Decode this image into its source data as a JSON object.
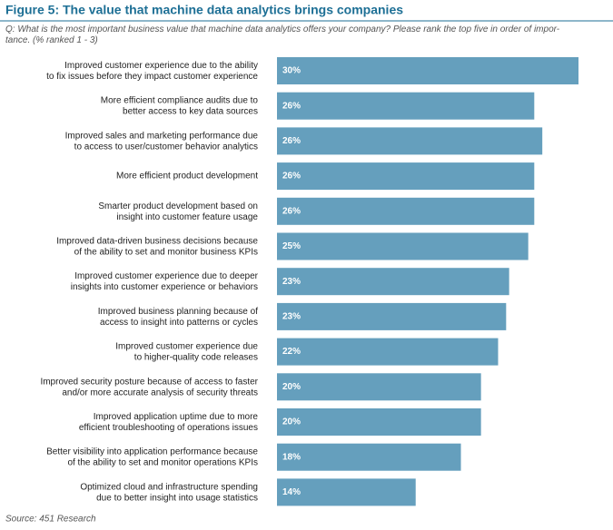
{
  "chart_data": {
    "type": "hbar",
    "title": "Figure 5: The value that machine data analytics brings companies",
    "subtitle": "Q: What is the most important business value that machine data analytics offers your company? Please rank the top five in order of impor-\ntance. (% ranked 1 - 3)",
    "source": "Source: 451 Research",
    "color": "#659fbd",
    "categories": [
      "Improved customer experience due to the ability\nto fix issues before they impact customer experience",
      "More efficient compliance audits due to\nbetter access to key data sources",
      "Improved sales and marketing performance due\nto access to user/customer behavior analytics",
      "More efficient product development",
      "Smarter product development based on\ninsight into customer feature usage",
      "Improved data-driven business decisions because\nof the ability to set and monitor business KPIs",
      "Improved customer experience due to deeper\ninsights into customer experience or behaviors",
      "Improved business planning because of\naccess to insight into patterns or cycles",
      "Improved customer experience due\nto higher-quality code releases",
      "Improved security posture because of access to faster\nand/or more accurate analysis of security threats",
      "Improved application uptime due to more\nefficient troubleshooting of operations issues",
      "Better visibility into application performance because\nof the ability to set and monitor operations KPIs",
      "Optimized cloud and infrastructure spending\ndue to better insight into usage statistics"
    ],
    "values": [
      30,
      25.6,
      26.4,
      25.6,
      25.6,
      25.0,
      23.1,
      22.8,
      22.0,
      20.3,
      20.3,
      18.3,
      13.8
    ],
    "value_labels": [
      "30%",
      "26%",
      "26%",
      "26%",
      "26%",
      "25%",
      "23%",
      "23%",
      "22%",
      "20%",
      "20%",
      "18%",
      "14%"
    ]
  }
}
